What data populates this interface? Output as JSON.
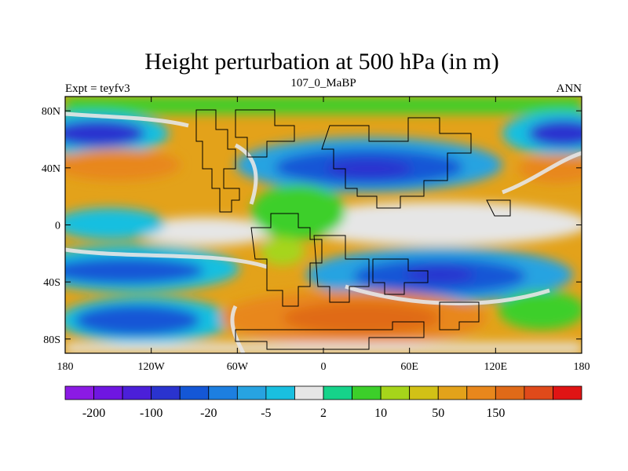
{
  "title": "Height perturbation at 500 hPa (in m)",
  "left_string": "Expt = teyfv3",
  "center_string": "107_0_MaBP",
  "right_string": "ANN",
  "map": {
    "projection": "cylindrical-equidistant",
    "lon_range": [
      -180,
      180
    ],
    "lat_range": [
      -90,
      90
    ],
    "x_ticks": [
      "180",
      "120W",
      "60W",
      "0",
      "60E",
      "120E",
      "180"
    ],
    "x_tick_lons": [
      -180,
      -120,
      -60,
      0,
      60,
      120,
      180
    ],
    "y_ticks": [
      "80N",
      "40N",
      "0",
      "40S",
      "80S"
    ],
    "y_tick_lats": [
      80,
      40,
      0,
      -40,
      -80
    ],
    "fill_type": "filled-contour",
    "coastline_outline": "coarse-grid continents"
  },
  "colorbar": {
    "colors": [
      "#8b1ae4",
      "#6f16e1",
      "#4b1fd9",
      "#2a33cf",
      "#1457d6",
      "#1d7fe0",
      "#27a3e1",
      "#19bfe0",
      "#e6e6e6",
      "#16d38a",
      "#3ccf2a",
      "#a6d51a",
      "#d2c116",
      "#e3a21a",
      "#e8871c",
      "#e06a18",
      "#e04a1a",
      "#e01414"
    ],
    "labels": [
      "-200",
      "-100",
      "-20",
      "-5",
      "2",
      "10",
      "50",
      "150"
    ],
    "label_positions": [
      1,
      3,
      5,
      7,
      9,
      11,
      13,
      15
    ]
  }
}
